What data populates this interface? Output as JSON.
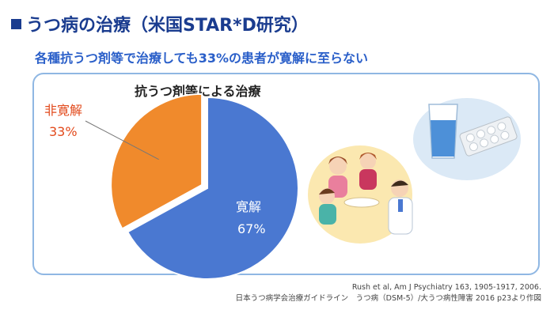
{
  "header": {
    "title": "うつ病の治療（米国STAR*D研究）",
    "subtitle": "各種抗うつ剤等で治療しても33%の患者が寛解に至らない"
  },
  "chart_data": {
    "type": "pie",
    "title": "抗うつ剤等による治療",
    "slices": [
      {
        "label": "寛解",
        "value": 67,
        "value_label": "67%",
        "color": "#4a78d1"
      },
      {
        "label": "非寛解",
        "value": 33,
        "value_label": "33%",
        "color": "#f08a2c"
      }
    ]
  },
  "source": {
    "line1": "Rush et al, Am J Psychiatry 163, 1905-1917, 2006.",
    "line2": "日本うつ病学会治療ガイドライン　うつ病（DSM-5）/大うつ病性障害 2016 p23より作図"
  },
  "colors": {
    "accent": "#1a3c8f",
    "subtitle": "#2a5fc9",
    "panel_border": "#8fb7e3",
    "non_remission_text": "#e24a1c"
  },
  "illustrations": {
    "group": "doctor-consultation-illustration",
    "medicine": "water-glass-and-pills-illustration"
  }
}
